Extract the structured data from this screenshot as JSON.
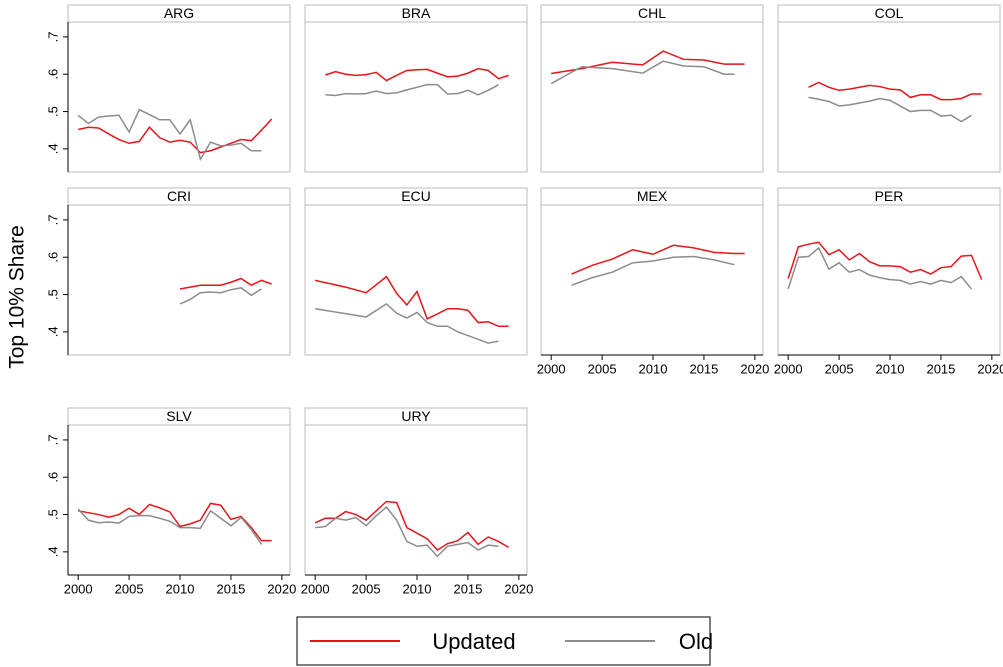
{
  "y_label": "Top 10% Share",
  "chart_data": [
    {
      "type": "line",
      "title": "ARG",
      "ylim": [
        0.338,
        0.74
      ],
      "xlim": [
        1999,
        2020.8
      ],
      "yticks": [
        {
          "value": 0.4,
          "label": ".4"
        },
        {
          "value": 0.5,
          "label": ".5"
        },
        {
          "value": 0.6,
          "label": ".6"
        },
        {
          "value": 0.7,
          "label": ".7"
        }
      ],
      "series": [
        {
          "name": "Updated",
          "color": "#e8141a",
          "x": [
            2000,
            2001,
            2002,
            2003,
            2004,
            2005,
            2006,
            2007,
            2008,
            2009,
            2010,
            2011,
            2012,
            2013,
            2014,
            2015,
            2016,
            2017,
            2018,
            2019
          ],
          "values": [
            0.452,
            0.458,
            0.456,
            0.44,
            0.425,
            0.415,
            0.42,
            0.458,
            0.43,
            0.418,
            0.423,
            0.418,
            0.39,
            0.395,
            0.405,
            0.415,
            0.425,
            0.422,
            0.45,
            0.48
          ]
        },
        {
          "name": "Old",
          "color": "#8c8c8c",
          "x": [
            2000,
            2001,
            2002,
            2003,
            2004,
            2005,
            2006,
            2007,
            2008,
            2009,
            2010,
            2011,
            2012,
            2013,
            2014,
            2015,
            2016,
            2017,
            2018
          ],
          "values": [
            0.49,
            0.468,
            0.485,
            0.488,
            0.49,
            0.445,
            0.505,
            0.492,
            0.478,
            0.478,
            0.44,
            0.478,
            0.372,
            0.418,
            0.408,
            0.41,
            0.415,
            0.395,
            0.395
          ]
        }
      ]
    },
    {
      "type": "line",
      "title": "BRA",
      "ylim": [
        0.338,
        0.74
      ],
      "xlim": [
        1999,
        2020.8
      ],
      "series": [
        {
          "name": "Updated",
          "color": "#e8141a",
          "x": [
            2001,
            2002,
            2003,
            2004,
            2005,
            2006,
            2007,
            2008,
            2009,
            2010,
            2011,
            2012,
            2013,
            2014,
            2015,
            2016,
            2017,
            2018,
            2019
          ],
          "values": [
            0.598,
            0.607,
            0.6,
            0.597,
            0.599,
            0.605,
            0.583,
            0.597,
            0.61,
            0.612,
            0.613,
            0.603,
            0.593,
            0.595,
            0.603,
            0.615,
            0.61,
            0.588,
            0.597
          ]
        },
        {
          "name": "Old",
          "color": "#8c8c8c",
          "x": [
            2001,
            2002,
            2003,
            2004,
            2005,
            2006,
            2007,
            2008,
            2009,
            2010,
            2011,
            2012,
            2013,
            2014,
            2015,
            2016,
            2017,
            2018
          ],
          "values": [
            0.545,
            0.543,
            0.548,
            0.547,
            0.548,
            0.555,
            0.548,
            0.55,
            0.558,
            0.565,
            0.572,
            0.572,
            0.547,
            0.548,
            0.557,
            0.545,
            0.557,
            0.572
          ]
        }
      ]
    },
    {
      "type": "line",
      "title": "CHL",
      "ylim": [
        0.338,
        0.74
      ],
      "xlim": [
        1999,
        2020.8
      ],
      "series": [
        {
          "name": "Updated",
          "color": "#e8141a",
          "x": [
            2000,
            2003,
            2006,
            2009,
            2011,
            2013,
            2015,
            2017,
            2019
          ],
          "values": [
            0.602,
            0.615,
            0.632,
            0.625,
            0.662,
            0.64,
            0.638,
            0.627,
            0.627
          ]
        },
        {
          "name": "Old",
          "color": "#8c8c8c",
          "x": [
            2000,
            2003,
            2006,
            2009,
            2011,
            2013,
            2015,
            2017,
            2018
          ],
          "values": [
            0.575,
            0.62,
            0.615,
            0.603,
            0.635,
            0.622,
            0.62,
            0.6,
            0.6
          ]
        }
      ]
    },
    {
      "type": "line",
      "title": "COL",
      "ylim": [
        0.338,
        0.74
      ],
      "xlim": [
        1999,
        2020.8
      ],
      "series": [
        {
          "name": "Updated",
          "color": "#e8141a",
          "x": [
            2002,
            2003,
            2004,
            2005,
            2006,
            2007,
            2008,
            2009,
            2010,
            2011,
            2012,
            2013,
            2014,
            2015,
            2016,
            2017,
            2018,
            2019
          ],
          "values": [
            0.565,
            0.578,
            0.565,
            0.557,
            0.56,
            0.565,
            0.57,
            0.567,
            0.56,
            0.558,
            0.538,
            0.545,
            0.545,
            0.532,
            0.532,
            0.535,
            0.547,
            0.547
          ]
        },
        {
          "name": "Old",
          "color": "#8c8c8c",
          "x": [
            2002,
            2003,
            2004,
            2005,
            2006,
            2007,
            2008,
            2009,
            2010,
            2011,
            2012,
            2013,
            2014,
            2015,
            2016,
            2017,
            2018
          ],
          "values": [
            0.538,
            0.533,
            0.527,
            0.515,
            0.518,
            0.523,
            0.528,
            0.535,
            0.53,
            0.515,
            0.5,
            0.503,
            0.503,
            0.488,
            0.49,
            0.473,
            0.49
          ]
        }
      ]
    },
    {
      "type": "line",
      "title": "CRI",
      "ylim": [
        0.338,
        0.74
      ],
      "xlim": [
        1999,
        2020.8
      ],
      "yticks": [
        {
          "value": 0.4,
          "label": ".4"
        },
        {
          "value": 0.5,
          "label": ".5"
        },
        {
          "value": 0.6,
          "label": ".6"
        },
        {
          "value": 0.7,
          "label": ".7"
        }
      ],
      "series": [
        {
          "name": "Updated",
          "color": "#e8141a",
          "x": [
            2010,
            2011,
            2012,
            2013,
            2014,
            2015,
            2016,
            2017,
            2018,
            2019
          ],
          "values": [
            0.515,
            0.52,
            0.525,
            0.525,
            0.525,
            0.533,
            0.543,
            0.525,
            0.538,
            0.528
          ]
        },
        {
          "name": "Old",
          "color": "#8c8c8c",
          "x": [
            2010,
            2011,
            2012,
            2013,
            2014,
            2015,
            2016,
            2017,
            2018
          ],
          "values": [
            0.475,
            0.487,
            0.505,
            0.507,
            0.505,
            0.513,
            0.518,
            0.498,
            0.515
          ]
        }
      ]
    },
    {
      "type": "line",
      "title": "ECU",
      "ylim": [
        0.338,
        0.74
      ],
      "xlim": [
        1999,
        2020.8
      ],
      "series": [
        {
          "name": "Updated",
          "color": "#e8141a",
          "x": [
            2000,
            2003,
            2005,
            2007,
            2008,
            2009,
            2010,
            2011,
            2012,
            2013,
            2014,
            2015,
            2016,
            2017,
            2018,
            2019
          ],
          "values": [
            0.538,
            0.52,
            0.505,
            0.548,
            0.503,
            0.472,
            0.508,
            0.435,
            0.448,
            0.462,
            0.462,
            0.458,
            0.425,
            0.427,
            0.415,
            0.415
          ]
        },
        {
          "name": "Old",
          "color": "#8c8c8c",
          "x": [
            2000,
            2005,
            2007,
            2008,
            2009,
            2010,
            2011,
            2012,
            2013,
            2014,
            2015,
            2016,
            2017,
            2018
          ],
          "values": [
            0.462,
            0.44,
            0.475,
            0.45,
            0.437,
            0.452,
            0.425,
            0.415,
            0.415,
            0.4,
            0.39,
            0.38,
            0.37,
            0.375
          ]
        }
      ]
    },
    {
      "type": "line",
      "title": "MEX",
      "ylim": [
        0.338,
        0.74
      ],
      "xlim": [
        1999,
        2020.8
      ],
      "xticks": [
        2000,
        2005,
        2010,
        2015,
        2020
      ],
      "series": [
        {
          "name": "Updated",
          "color": "#e8141a",
          "x": [
            2002,
            2004,
            2006,
            2008,
            2010,
            2012,
            2014,
            2016,
            2018,
            2019
          ],
          "values": [
            0.555,
            0.578,
            0.595,
            0.62,
            0.608,
            0.632,
            0.625,
            0.613,
            0.61,
            0.61
          ]
        },
        {
          "name": "Old",
          "color": "#8c8c8c",
          "x": [
            2002,
            2004,
            2006,
            2008,
            2010,
            2012,
            2014,
            2016,
            2018
          ],
          "values": [
            0.525,
            0.545,
            0.56,
            0.585,
            0.59,
            0.6,
            0.602,
            0.593,
            0.58
          ]
        }
      ]
    },
    {
      "type": "line",
      "title": "PER",
      "ylim": [
        0.338,
        0.74
      ],
      "xlim": [
        1999,
        2020.8
      ],
      "xticks": [
        2000,
        2005,
        2010,
        2015,
        2020
      ],
      "series": [
        {
          "name": "Updated",
          "color": "#e8141a",
          "x": [
            2000,
            2001,
            2002,
            2003,
            2004,
            2005,
            2006,
            2007,
            2008,
            2009,
            2010,
            2011,
            2012,
            2013,
            2014,
            2015,
            2016,
            2017,
            2018,
            2019
          ],
          "values": [
            0.543,
            0.628,
            0.635,
            0.64,
            0.607,
            0.62,
            0.593,
            0.61,
            0.588,
            0.577,
            0.577,
            0.575,
            0.56,
            0.567,
            0.555,
            0.572,
            0.575,
            0.603,
            0.605,
            0.54
          ]
        },
        {
          "name": "Old",
          "color": "#8c8c8c",
          "x": [
            2000,
            2001,
            2002,
            2003,
            2004,
            2005,
            2006,
            2007,
            2008,
            2009,
            2010,
            2011,
            2012,
            2013,
            2014,
            2015,
            2016,
            2017,
            2018
          ],
          "values": [
            0.515,
            0.6,
            0.602,
            0.625,
            0.568,
            0.585,
            0.56,
            0.567,
            0.552,
            0.545,
            0.54,
            0.538,
            0.528,
            0.535,
            0.528,
            0.538,
            0.532,
            0.548,
            0.515
          ]
        }
      ]
    },
    {
      "type": "line",
      "title": "SLV",
      "ylim": [
        0.338,
        0.74
      ],
      "xlim": [
        1999,
        2020.8
      ],
      "xticks": [
        2000,
        2005,
        2010,
        2015,
        2020
      ],
      "yticks": [
        {
          "value": 0.4,
          "label": ".4"
        },
        {
          "value": 0.5,
          "label": ".5"
        },
        {
          "value": 0.6,
          "label": ".6"
        },
        {
          "value": 0.7,
          "label": ".7"
        }
      ],
      "series": [
        {
          "name": "Updated",
          "color": "#e8141a",
          "x": [
            2000,
            2001,
            2002,
            2003,
            2004,
            2005,
            2006,
            2007,
            2008,
            2009,
            2010,
            2011,
            2012,
            2013,
            2014,
            2015,
            2016,
            2017,
            2018,
            2019
          ],
          "values": [
            0.51,
            0.505,
            0.5,
            0.493,
            0.5,
            0.517,
            0.5,
            0.527,
            0.518,
            0.507,
            0.468,
            0.475,
            0.485,
            0.53,
            0.525,
            0.487,
            0.495,
            0.465,
            0.43,
            0.43
          ]
        },
        {
          "name": "Old",
          "color": "#8c8c8c",
          "x": [
            2000,
            2001,
            2002,
            2003,
            2004,
            2005,
            2006,
            2007,
            2008,
            2009,
            2010,
            2011,
            2012,
            2013,
            2014,
            2015,
            2016,
            2017,
            2018
          ],
          "values": [
            0.515,
            0.485,
            0.478,
            0.48,
            0.477,
            0.495,
            0.497,
            0.497,
            0.49,
            0.482,
            0.465,
            0.465,
            0.463,
            0.51,
            0.49,
            0.47,
            0.492,
            0.46,
            0.42
          ]
        }
      ]
    },
    {
      "type": "line",
      "title": "URY",
      "ylim": [
        0.338,
        0.74
      ],
      "xlim": [
        1999,
        2020.8
      ],
      "xticks": [
        2000,
        2005,
        2010,
        2015,
        2020
      ],
      "series": [
        {
          "name": "Updated",
          "color": "#e8141a",
          "x": [
            2000,
            2001,
            2002,
            2003,
            2004,
            2005,
            2006,
            2007,
            2008,
            2009,
            2010,
            2011,
            2012,
            2013,
            2014,
            2015,
            2016,
            2017,
            2018,
            2019
          ],
          "values": [
            0.478,
            0.49,
            0.49,
            0.508,
            0.5,
            0.485,
            0.51,
            0.535,
            0.532,
            0.465,
            0.45,
            0.435,
            0.405,
            0.422,
            0.43,
            0.452,
            0.42,
            0.44,
            0.428,
            0.412
          ]
        },
        {
          "name": "Old",
          "color": "#8c8c8c",
          "x": [
            2000,
            2001,
            2002,
            2003,
            2004,
            2005,
            2006,
            2007,
            2008,
            2009,
            2010,
            2011,
            2012,
            2013,
            2014,
            2015,
            2016,
            2017,
            2018
          ],
          "values": [
            0.465,
            0.468,
            0.49,
            0.485,
            0.492,
            0.47,
            0.497,
            0.52,
            0.485,
            0.428,
            0.415,
            0.418,
            0.388,
            0.415,
            0.42,
            0.425,
            0.405,
            0.418,
            0.415
          ]
        }
      ]
    }
  ]
}
